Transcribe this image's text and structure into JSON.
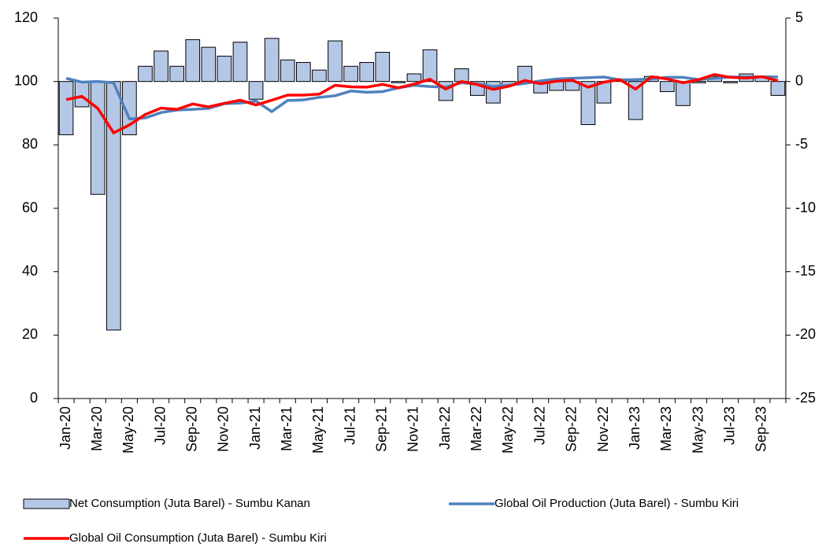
{
  "chart_data": {
    "type": "bar-line",
    "categories": [
      "Jan-20",
      null,
      "Mar-20",
      null,
      "May-20",
      null,
      "Jul-20",
      null,
      "Sep-20",
      null,
      "Nov-20",
      null,
      "Jan-21",
      null,
      "Mar-21",
      null,
      "May-21",
      null,
      "Jul-21",
      null,
      "Sep-21",
      null,
      "Nov-21",
      null,
      "Jan-22",
      null,
      "Mar-22",
      null,
      "May-22",
      null,
      "Jul-22",
      null,
      "Sep-22",
      null,
      "Nov-22",
      null,
      "Jan-23",
      null,
      "Mar-23",
      null,
      "May-23",
      null,
      "Jul-23",
      null,
      "Sep-23",
      null
    ],
    "series": [
      {
        "name": "Net Consumption (Juta Barel) - Sumbu Kanan",
        "type": "bar",
        "axis": "y2",
        "color": "#b4c7e7",
        "values": [
          -4.2,
          -2.0,
          -8.9,
          -19.6,
          -4.2,
          1.2,
          2.4,
          1.2,
          3.3,
          2.7,
          2.0,
          3.1,
          -1.4,
          3.4,
          1.7,
          1.5,
          0.9,
          3.2,
          1.2,
          1.5,
          2.3,
          -0.1,
          0.6,
          2.5,
          -1.5,
          1.0,
          -1.1,
          -1.7,
          -0.3,
          1.2,
          -0.9,
          -0.7,
          -0.7,
          -3.4,
          -1.7,
          0.1,
          -3.0,
          0.4,
          -0.8,
          -1.9,
          -0.1,
          0.4,
          -0.1,
          0.6,
          0.4,
          -1.1
        ]
      },
      {
        "name": "Global Oil Production (Juta Barel) - Sumbu Kiri",
        "type": "line",
        "color": "#4f81bd",
        "values": [
          101,
          99.8,
          100,
          99.6,
          88.2,
          88.5,
          90.2,
          91,
          91.2,
          91.5,
          93,
          93.2,
          93.8,
          90.5,
          94,
          94.2,
          95,
          95.5,
          97,
          96.6,
          96.8,
          98,
          98.8,
          98.4,
          98.2,
          99.6,
          99.2,
          98.4,
          98.8,
          99.4,
          100.2,
          100.8,
          101,
          101.2,
          101.4,
          100.5,
          100.6,
          100.8,
          101.3,
          101.3,
          100.6,
          101,
          101.4,
          101.4,
          101.5,
          101.4
        ]
      },
      {
        "name": "Global Oil Consumption (Juta Barel) - Sumbu Kiri",
        "type": "line",
        "color": "#ff0000",
        "values": [
          94.3,
          95.3,
          91.5,
          83.8,
          86.3,
          89.6,
          91.6,
          91.2,
          92.9,
          92,
          93.1,
          94.1,
          92.6,
          94.1,
          95.7,
          95.7,
          96,
          98.8,
          98.3,
          98.2,
          99.1,
          98,
          99.2,
          100.7,
          97.6,
          100,
          99,
          97.5,
          98.5,
          100.3,
          99.3,
          100.1,
          100.4,
          98.2,
          99.8,
          100.6,
          97.6,
          101.5,
          100.8,
          99.6,
          100.6,
          102.2,
          101.3,
          101.1,
          101.5,
          100.2
        ]
      }
    ],
    "ylim": [
      0,
      120
    ],
    "yticks": [
      0,
      20,
      40,
      60,
      80,
      100,
      120
    ],
    "y2lim": [
      -25,
      5
    ],
    "y2ticks": [
      -25,
      -20,
      -15,
      -10,
      -5,
      0,
      5
    ],
    "grid": false,
    "legend": "bottom"
  }
}
